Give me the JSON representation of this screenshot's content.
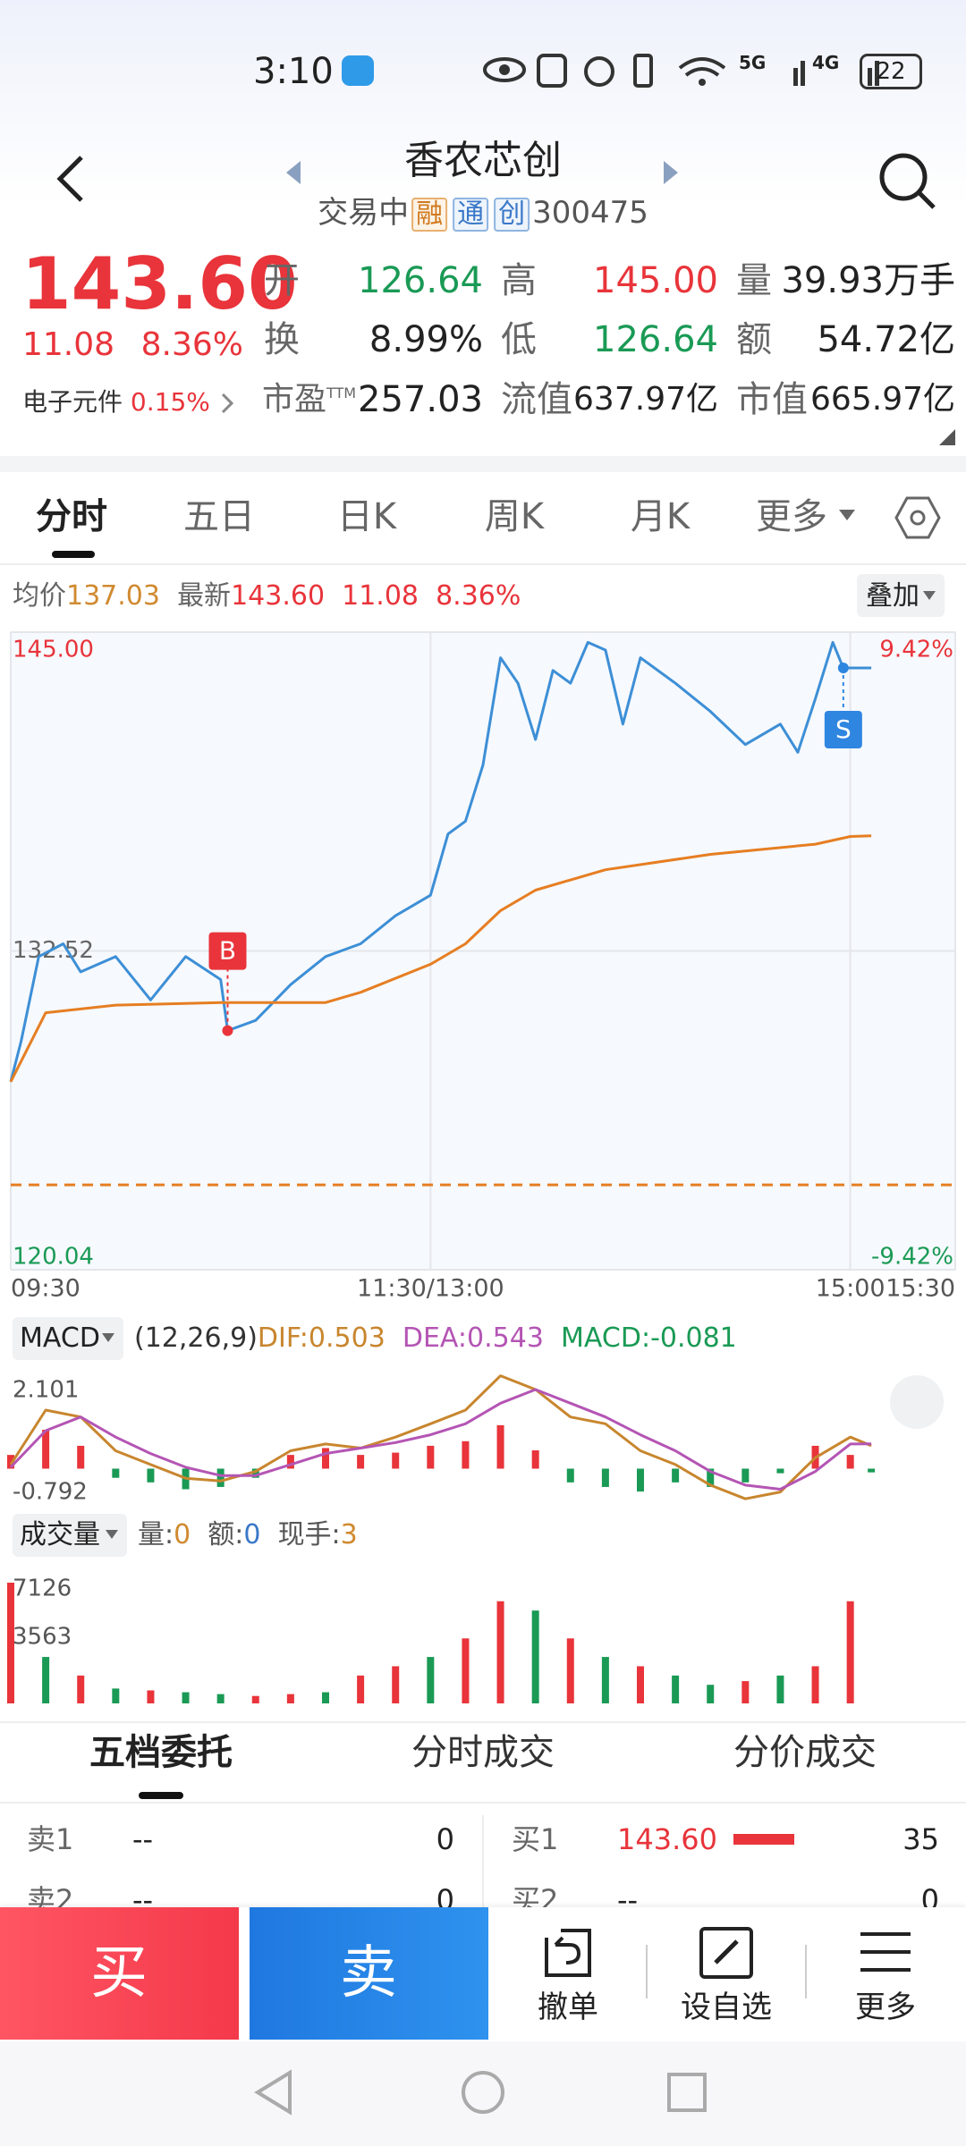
{
  "status_bar": {
    "time": "3:10",
    "network": [
      "5G",
      "4G"
    ],
    "battery": "22"
  },
  "header": {
    "title": "香农芯创",
    "status": "交易中",
    "tags": [
      "融",
      "通",
      "创"
    ],
    "code": "300475"
  },
  "quote": {
    "price": "143.60",
    "change": "11.08",
    "change_pct": "8.36%",
    "stats": [
      {
        "label": "开",
        "value": "126.64"
      },
      {
        "label": "高",
        "value": "145.00"
      },
      {
        "label": "量",
        "value": "39.93万手"
      },
      {
        "label": "换",
        "value": "8.99%"
      },
      {
        "label": "低",
        "value": "126.64"
      },
      {
        "label": "额",
        "value": "54.72亿"
      },
      {
        "label": "市盈",
        "sup": "TTM",
        "value": "257.03"
      },
      {
        "label": "流值",
        "value": "637.97亿"
      },
      {
        "label": "市值",
        "value": "665.97亿"
      }
    ],
    "sector": {
      "name": "电子元件",
      "change": "0.15%"
    }
  },
  "tabs": [
    "分时",
    "五日",
    "日K",
    "周K",
    "月K",
    "更多"
  ],
  "info": {
    "avg_label": "均价",
    "avg": "137.03",
    "latest_label": "最新",
    "latest": "143.60",
    "change": "11.08",
    "change_pct": "8.36%",
    "overlay": "叠加"
  },
  "chart_data": [
    {
      "type": "line",
      "xlim": [
        0,
        270
      ],
      "xticks": [
        {
          "value": 0,
          "label": "09:30"
        },
        {
          "value": 120,
          "label": "11:30/13:00"
        },
        {
          "value": 240,
          "label": "15:00"
        },
        {
          "value": 270,
          "label": "15:30"
        }
      ],
      "ylim": [
        120.04,
        145
      ],
      "yticks": [
        {
          "value": 145,
          "label": "145.00"
        },
        132.52,
        120.04
      ],
      "annotations": [
        "9.42%",
        "-9.42%"
      ],
      "reference_line": 123.36,
      "series": [
        {
          "name": "最新",
          "color": "#3d8fd6",
          "x": [
            0,
            3,
            8,
            15,
            20,
            30,
            40,
            50,
            60,
            62,
            70,
            80,
            90,
            100,
            110,
            120,
            125,
            130,
            135,
            140,
            145,
            150,
            155,
            160,
            165,
            170,
            175,
            180,
            190,
            200,
            210,
            220,
            225,
            230,
            235,
            238,
            246
          ],
          "values": [
            127.4,
            129.0,
            132.3,
            132.8,
            131.7,
            132.3,
            130.6,
            132.3,
            131.4,
            129.4,
            129.8,
            131.2,
            132.3,
            132.8,
            133.9,
            134.7,
            137.1,
            137.6,
            139.8,
            144.0,
            143.0,
            140.8,
            143.5,
            143.0,
            144.6,
            144.3,
            141.4,
            144.0,
            143.0,
            141.9,
            140.6,
            141.4,
            140.3,
            142.4,
            144.6,
            143.6,
            143.6
          ]
        },
        {
          "name": "均价",
          "color": "#e67e22",
          "x": [
            0,
            10,
            30,
            60,
            90,
            100,
            120,
            130,
            140,
            150,
            170,
            200,
            230,
            240,
            246
          ],
          "values": [
            127.4,
            130.1,
            130.4,
            130.5,
            130.5,
            130.9,
            132.0,
            132.8,
            134.1,
            134.9,
            135.7,
            136.3,
            136.7,
            137.0,
            137.03
          ]
        }
      ],
      "markers": [
        {
          "label": "B",
          "x": 62,
          "y": 129.4,
          "color": "#e8343a"
        },
        {
          "label": "S",
          "x": 238,
          "y": 143.6,
          "color": "#2f86e0"
        }
      ]
    },
    {
      "type": "macd",
      "title": "MACD",
      "params": "(12,26,9)",
      "xlim": [
        0,
        270
      ],
      "x": [
        0,
        10,
        20,
        30,
        40,
        50,
        60,
        70,
        80,
        90,
        100,
        110,
        120,
        130,
        140,
        150,
        160,
        170,
        180,
        190,
        200,
        210,
        220,
        230,
        240,
        246
      ],
      "ylim": [
        -0.792,
        2.101
      ],
      "yticks": [
        2.101,
        -0.792
      ],
      "series": [
        {
          "name": "DIF:",
          "color": "#c8862e",
          "values": [
            0.09,
            1.28,
            1.13,
            0.39,
            0.09,
            -0.21,
            -0.27,
            -0.06,
            0.39,
            0.54,
            0.45,
            0.69,
            0.98,
            1.28,
            2.03,
            1.73,
            1.13,
            0.98,
            0.39,
            0.09,
            -0.36,
            -0.66,
            -0.51,
            0.24,
            0.69,
            0.503
          ]
        },
        {
          "name": "DEA:",
          "color": "#b455b4",
          "values": [
            0.03,
            0.83,
            1.13,
            0.69,
            0.33,
            0.03,
            -0.15,
            -0.15,
            0.09,
            0.33,
            0.45,
            0.57,
            0.74,
            0.98,
            1.43,
            1.73,
            1.43,
            1.13,
            0.74,
            0.39,
            -0.06,
            -0.36,
            -0.45,
            -0.06,
            0.54,
            0.543
          ]
        },
        {
          "name": "MACD:",
          "type": "bar",
          "color": "#1a9a55",
          "up_color": "#e8343a",
          "down_color": "#1a9a55",
          "values": [
            0.3,
            0.85,
            0.5,
            -0.2,
            -0.3,
            -0.45,
            -0.4,
            -0.2,
            0.3,
            0.45,
            0.3,
            0.35,
            0.5,
            0.6,
            0.95,
            0.4,
            -0.3,
            -0.4,
            -0.5,
            -0.3,
            -0.4,
            -0.3,
            -0.1,
            0.5,
            0.3,
            -0.081
          ]
        }
      ]
    },
    {
      "type": "bar",
      "title": "成交量",
      "stats": [
        {
          "label": "量:",
          "value": 0,
          "color": "#d08a30"
        },
        {
          "label": "额:",
          "value": 0,
          "color": "#3a78c8"
        },
        {
          "label": "现手:",
          "value": 3,
          "color": "#d08a30"
        }
      ],
      "xlim": [
        0,
        270
      ],
      "x": [
        0,
        10,
        20,
        30,
        40,
        50,
        60,
        70,
        80,
        90,
        100,
        110,
        120,
        130,
        140,
        150,
        160,
        170,
        180,
        190,
        200,
        210,
        220,
        230,
        240
      ],
      "values": [
        6500,
        2500,
        1500,
        800,
        700,
        600,
        500,
        400,
        500,
        600,
        1500,
        2000,
        2500,
        3500,
        5500,
        5000,
        3500,
        2500,
        2000,
        1500,
        1000,
        1200,
        1500,
        2000,
        5500
      ],
      "colors": [
        "#e8343a",
        "#1a9a55",
        "#e8343a",
        "#1a9a55",
        "#e8343a",
        "#1a9a55",
        "#1a9a55",
        "#e8343a",
        "#e8343a",
        "#1a9a55",
        "#e8343a",
        "#e8343a",
        "#1a9a55",
        "#e8343a",
        "#e8343a",
        "#1a9a55",
        "#e8343a",
        "#1a9a55",
        "#e8343a",
        "#1a9a55",
        "#1a9a55",
        "#e8343a",
        "#1a9a55",
        "#e8343a",
        "#e8343a"
      ],
      "ylim": [
        0,
        7126
      ],
      "yticks": [
        7126,
        3563
      ]
    }
  ],
  "order_tabs": [
    "五档委托",
    "分时成交",
    "分价成交"
  ],
  "order_book": {
    "sell": [
      {
        "label": "卖1",
        "price": "--",
        "volume": "0"
      },
      {
        "label": "卖2",
        "price": "--",
        "volume": "0"
      }
    ],
    "buy": [
      {
        "label": "买1",
        "price": "143.60",
        "volume": "35"
      },
      {
        "label": "买2",
        "price": "--",
        "volume": "0"
      }
    ]
  },
  "actions": {
    "buy": "买",
    "sell": "卖",
    "cancel": "撤单",
    "watchlist": "设自选",
    "more": "更多"
  }
}
